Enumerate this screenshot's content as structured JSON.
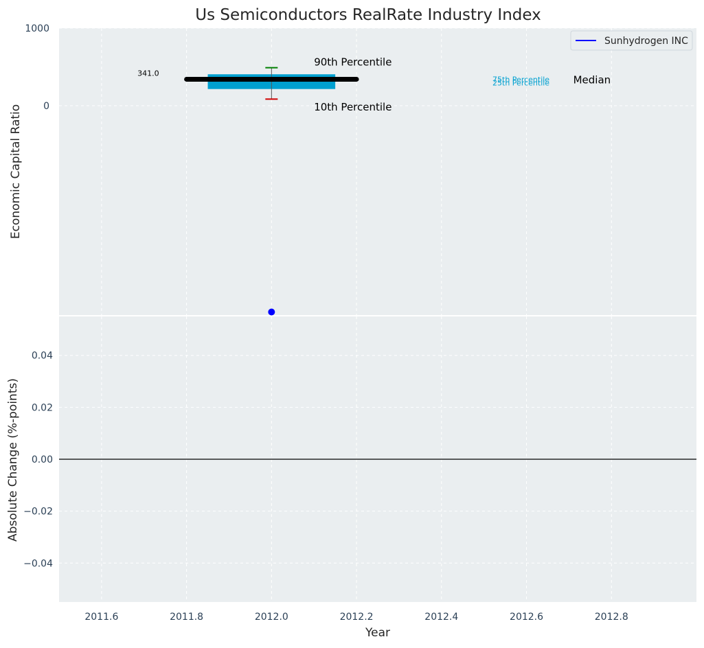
{
  "chart_data": [
    {
      "type": "boxplot",
      "title": "Us Semiconductors RealRate Industry Index",
      "xlabel": "",
      "ylabel": "Economic Capital Ratio",
      "xlim": [
        2011.5,
        2013.0
      ],
      "ylim": [
        -2700,
        1000
      ],
      "y_ticks": [
        0,
        1000
      ],
      "y_tick_labels": [
        "0",
        "1000"
      ],
      "grid": true,
      "legend": {
        "position": "top-right",
        "entries": [
          {
            "label": "Sunhydrogen INC",
            "color": "#0000ff"
          }
        ]
      },
      "box": {
        "x": 2012.0,
        "p10": 85,
        "p25": 215,
        "p75": 405,
        "p90": 490,
        "color": "#00a0d0",
        "whisker_low_color": "#d00000",
        "whisker_high_color": "#008000"
      },
      "median_line": {
        "x_start": 2011.8,
        "x_end": 2012.2,
        "value": 341.0,
        "label": "341.0",
        "color": "#000000"
      },
      "series": [
        {
          "name": "Sunhydrogen INC",
          "x": [
            2012.0
          ],
          "y": [
            -2660
          ],
          "color": "#0000ff"
        }
      ],
      "annotations": [
        {
          "text": "90th Percentile",
          "x": 2012.1,
          "y": 570,
          "color": "#000000"
        },
        {
          "text": "10th Percentile",
          "x": 2012.1,
          "y": -10,
          "color": "#000000"
        },
        {
          "text": "75th Percentile",
          "x": 2012.52,
          "y": 340,
          "color": "#00a0d0"
        },
        {
          "text": "25th Percentile",
          "x": 2012.52,
          "y": 295,
          "color": "#00a0d0"
        },
        {
          "text": "Median",
          "x": 2012.71,
          "y": 340,
          "color": "#000000"
        }
      ]
    },
    {
      "type": "line",
      "title": "",
      "xlabel": "Year",
      "ylabel": "Absolute Change (%-points)",
      "xlim": [
        2011.5,
        2013.0
      ],
      "ylim": [
        -0.055,
        0.055
      ],
      "x_ticks": [
        2011.6,
        2011.8,
        2012.0,
        2012.2,
        2012.4,
        2012.6,
        2012.8
      ],
      "x_tick_labels": [
        "2011.6",
        "2011.8",
        "2012.0",
        "2012.2",
        "2012.4",
        "2012.6",
        "2012.8"
      ],
      "y_ticks": [
        0.04,
        0.02,
        0.0,
        -0.02,
        -0.04
      ],
      "y_tick_labels": [
        "0.04",
        "0.02",
        "0.00",
        "−0.02",
        "−0.04"
      ],
      "grid": true,
      "zero_line": {
        "value": 0,
        "color": "#000000"
      },
      "series": []
    }
  ],
  "colors": {
    "plot_bg": "#eaeef0",
    "grid": "#ffffff",
    "tick_text": "#2a3f55",
    "label_text": "#262626"
  }
}
